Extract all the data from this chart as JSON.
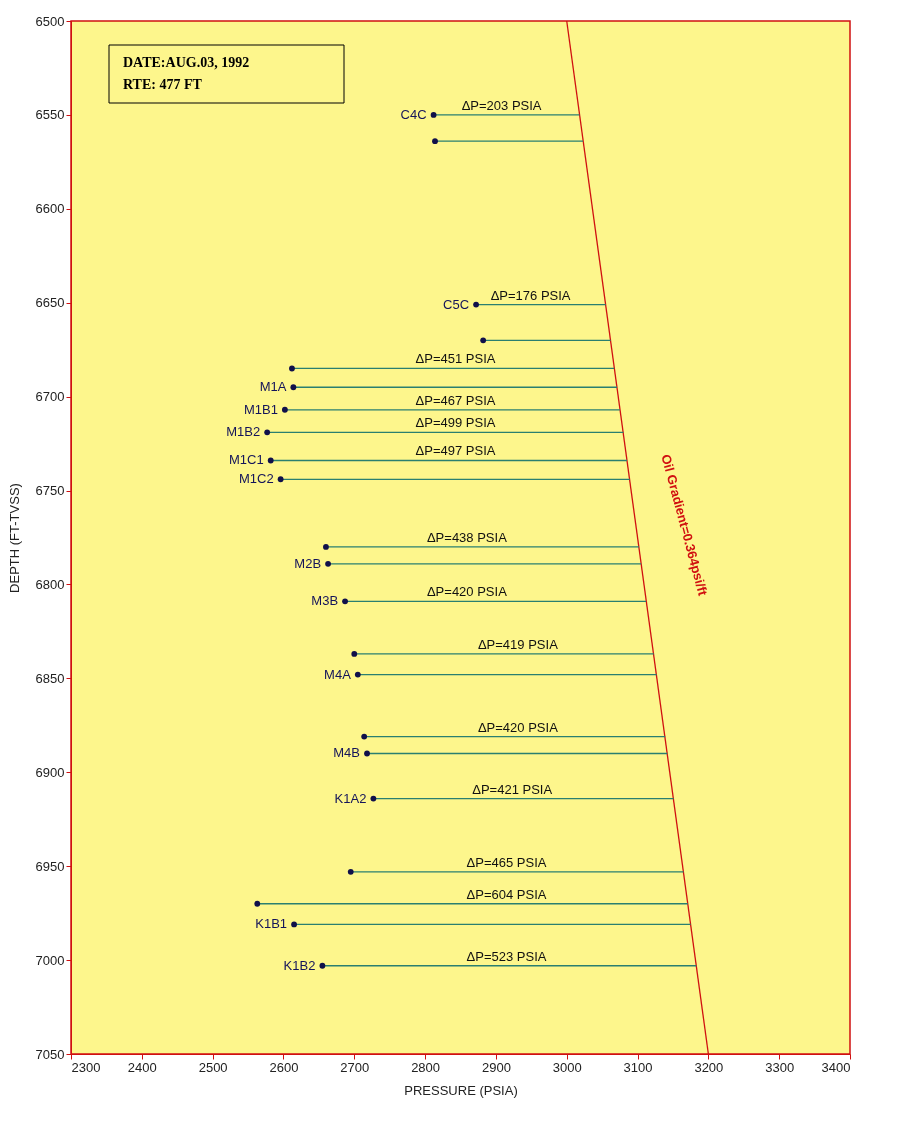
{
  "chart_data": {
    "type": "line",
    "xlabel": "PRESSURE (PSIA)",
    "ylabel": "DEPTH (FT-TVSS)",
    "xlim": [
      2300,
      3400
    ],
    "xticks": [
      2300,
      2400,
      2500,
      2600,
      2700,
      2800,
      2900,
      3000,
      3100,
      3200,
      3300,
      3400
    ],
    "ylim": [
      7050,
      6500
    ],
    "yticks": [
      6500,
      6550,
      6600,
      6650,
      6700,
      6750,
      6800,
      6850,
      6900,
      6950,
      7000,
      7050
    ],
    "line_style": "solid",
    "series": [
      {
        "name": "Oil Gradient=0.364psi/ft",
        "color": "#d01010",
        "x": [
          3000,
          3200
        ],
        "values": [
          6500,
          7050
        ]
      },
      {
        "type": "scatter",
        "marker": "circle",
        "color": "#10104a",
        "x": [
          2812,
          2814,
          2872,
          2882,
          2612,
          2614,
          2602,
          2577,
          2582,
          2596,
          2660,
          2663,
          2687,
          2700,
          2705,
          2714,
          2718,
          2727,
          2695,
          2563,
          2615,
          2655
        ],
        "values": [
          6550,
          6564,
          6651,
          6670,
          6685,
          6695,
          6707,
          6719,
          6734,
          6744,
          6780,
          6789,
          6809,
          6837,
          6848,
          6881,
          6890,
          6914,
          6953,
          6970,
          6981,
          7003
        ]
      },
      {
        "color": "#2a7f70",
        "x": [
          2812,
          3018
        ],
        "values": [
          6550,
          6550
        ]
      },
      {
        "color": "#2a7f70",
        "x": [
          2814,
          3023
        ],
        "values": [
          6564,
          6564
        ]
      },
      {
        "color": "#2a7f70",
        "x": [
          2872,
          3055
        ],
        "values": [
          6651,
          6651
        ]
      },
      {
        "color": "#2a7f70",
        "x": [
          2882,
          3062
        ],
        "values": [
          6670,
          6670
        ]
      },
      {
        "color": "#2a7f70",
        "x": [
          2612,
          3067
        ],
        "values": [
          6685,
          6685
        ]
      },
      {
        "color": "#2a7f70",
        "x": [
          2614,
          3071
        ],
        "values": [
          6695,
          6695
        ]
      },
      {
        "color": "#2a7f70",
        "x": [
          2602,
          3075
        ],
        "values": [
          6707,
          6707
        ]
      },
      {
        "color": "#2a7f70",
        "x": [
          2577,
          3080
        ],
        "values": [
          6719,
          6719
        ]
      },
      {
        "color": "#2a7f70",
        "x": [
          2582,
          3085
        ],
        "values": [
          6734,
          6734
        ]
      },
      {
        "color": "#2a7f70",
        "x": [
          2596,
          3089
        ],
        "values": [
          6744,
          6744
        ]
      },
      {
        "color": "#2a7f70",
        "x": [
          2660,
          3102
        ],
        "values": [
          6780,
          6780
        ]
      },
      {
        "color": "#2a7f70",
        "x": [
          2663,
          3105
        ],
        "values": [
          6789,
          6789
        ]
      },
      {
        "color": "#2a7f70",
        "x": [
          2687,
          3112
        ],
        "values": [
          6809,
          6809
        ]
      },
      {
        "color": "#2a7f70",
        "x": [
          2700,
          3123
        ],
        "values": [
          6837,
          6837
        ]
      },
      {
        "color": "#2a7f70",
        "x": [
          2705,
          3127
        ],
        "values": [
          6848,
          6848
        ]
      },
      {
        "color": "#2a7f70",
        "x": [
          2714,
          3139
        ],
        "values": [
          6881,
          6881
        ]
      },
      {
        "color": "#2a7f70",
        "x": [
          2718,
          3142
        ],
        "values": [
          6890,
          6890
        ]
      },
      {
        "color": "#2a7f70",
        "x": [
          2727,
          3151
        ],
        "values": [
          6914,
          6914
        ]
      },
      {
        "color": "#2a7f70",
        "x": [
          2695,
          3165
        ],
        "values": [
          6953,
          6953
        ]
      },
      {
        "color": "#2a7f70",
        "x": [
          2563,
          3171
        ],
        "values": [
          6970,
          6970
        ]
      },
      {
        "color": "#2a7f70",
        "x": [
          2615,
          3175
        ],
        "values": [
          6981,
          6981
        ]
      },
      {
        "color": "#2a7f70",
        "x": [
          2655,
          3183
        ],
        "values": [
          7003,
          7003
        ]
      }
    ],
    "annotations": [
      "DATE:AUG.03, 1992",
      "RTE: 477 FT",
      {
        "text": "ΔP=203 PSIA",
        "x": 2908,
        "y": 6550
      },
      {
        "text": "ΔP=176 PSIA",
        "x": 2949,
        "y": 6651
      },
      {
        "text": "ΔP=451 PSIA",
        "x": 2843,
        "y": 6685
      },
      {
        "text": "ΔP=467 PSIA",
        "x": 2843,
        "y": 6707
      },
      {
        "text": "ΔP=499 PSIA",
        "x": 2843,
        "y": 6719
      },
      {
        "text": "ΔP=497 PSIA",
        "x": 2843,
        "y": 6734
      },
      {
        "text": "ΔP=438 PSIA",
        "x": 2859,
        "y": 6780
      },
      {
        "text": "ΔP=420 PSIA",
        "x": 2859,
        "y": 6809
      },
      {
        "text": "ΔP=419 PSIA",
        "x": 2931,
        "y": 6837
      },
      {
        "text": "ΔP=420 PSIA",
        "x": 2931,
        "y": 6881
      },
      {
        "text": "ΔP=421 PSIA",
        "x": 2923,
        "y": 6914
      },
      {
        "text": "ΔP=465 PSIA",
        "x": 2915,
        "y": 6953
      },
      {
        "text": "ΔP=604 PSIA",
        "x": 2915,
        "y": 6970
      },
      {
        "text": "ΔP=523 PSIA",
        "x": 2915,
        "y": 7003
      },
      {
        "text": "C4C",
        "x": 2812,
        "y": 6550
      },
      {
        "text": "C5C",
        "x": 2872,
        "y": 6651
      },
      {
        "text": "M1A",
        "x": 2614,
        "y": 6695
      },
      {
        "text": "M1B1",
        "x": 2602,
        "y": 6707
      },
      {
        "text": "M1B2",
        "x": 2577,
        "y": 6719
      },
      {
        "text": "M1C1",
        "x": 2582,
        "y": 6734
      },
      {
        "text": "M1C2",
        "x": 2596,
        "y": 6744
      },
      {
        "text": "M2B",
        "x": 2663,
        "y": 6789
      },
      {
        "text": "M3B",
        "x": 2687,
        "y": 6809
      },
      {
        "text": "M4A",
        "x": 2705,
        "y": 6848
      },
      {
        "text": "M4B",
        "x": 2718,
        "y": 6890
      },
      {
        "text": "K1A2",
        "x": 2727,
        "y": 6914
      },
      {
        "text": "K1B1",
        "x": 2615,
        "y": 6981
      },
      {
        "text": "K1B2",
        "x": 2655,
        "y": 7003
      }
    ]
  }
}
